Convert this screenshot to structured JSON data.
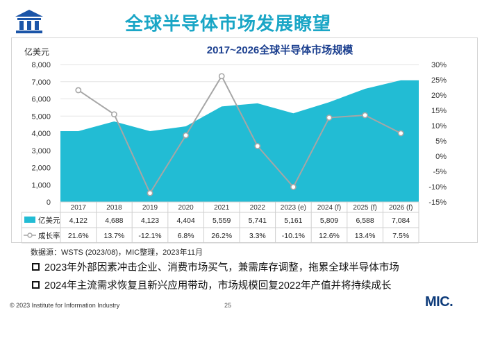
{
  "header": {
    "title": "全球半导体市场发展瞭望"
  },
  "logo": {
    "icon": "institution-pillars-icon",
    "color": "#1b55a8"
  },
  "colors": {
    "accent": "#1aa6c6",
    "area": "#22bcd4",
    "line": "#a6a6a6",
    "brand": "#0d3b7a"
  },
  "chart_data": {
    "type": "area",
    "title": "2017~2026全球半导体市场规模",
    "y_unit_label": "亿美元",
    "categories": [
      "2017",
      "2018",
      "2019",
      "2020",
      "2021",
      "2022",
      "2023 (e)",
      "2024 (f)",
      "2025 (f)",
      "2026 (f)"
    ],
    "ylim": [
      0,
      8000
    ],
    "yticks": [
      "0",
      "1,000",
      "2,000",
      "3,000",
      "4,000",
      "5,000",
      "6,000",
      "7,000",
      "8,000"
    ],
    "y2lim": [
      -15,
      30
    ],
    "y2ticks": [
      "-15%",
      "-10%",
      "-5%",
      "0%",
      "5%",
      "10%",
      "15%",
      "20%",
      "25%",
      "30%"
    ],
    "grid": true,
    "series": [
      {
        "name": "亿美元",
        "type": "area",
        "values": [
          4122,
          4688,
          4123,
          4404,
          5559,
          5741,
          5161,
          5809,
          6588,
          7084
        ],
        "labels": [
          "4,122",
          "4,688",
          "4,123",
          "4,404",
          "5,559",
          "5,741",
          "5,161",
          "5,809",
          "6,588",
          "7,084"
        ]
      },
      {
        "name": "成长率",
        "type": "line",
        "axis": "right",
        "values": [
          21.6,
          13.7,
          -12.1,
          6.8,
          26.2,
          3.3,
          -10.1,
          12.6,
          13.4,
          7.5
        ],
        "labels": [
          "21.6%",
          "13.7%",
          "-12.1%",
          "6.8%",
          "26.2%",
          "3.3%",
          "-10.1%",
          "12.6%",
          "13.4%",
          "7.5%"
        ]
      }
    ]
  },
  "source": "数据源：WSTS (2023/08)，MIC整理，2023年11月",
  "bullets": [
    "2023年外部因素冲击企业、消费市场买气，兼需库存调整，拖累全球半导体市场",
    "2024年主流需求恢复且新兴应用带动，市场规模回复2022年产值并将持续成长"
  ],
  "footer": {
    "copyright": "© 2023 Institute for Information Industry",
    "page": "25",
    "brand": "MIC."
  }
}
